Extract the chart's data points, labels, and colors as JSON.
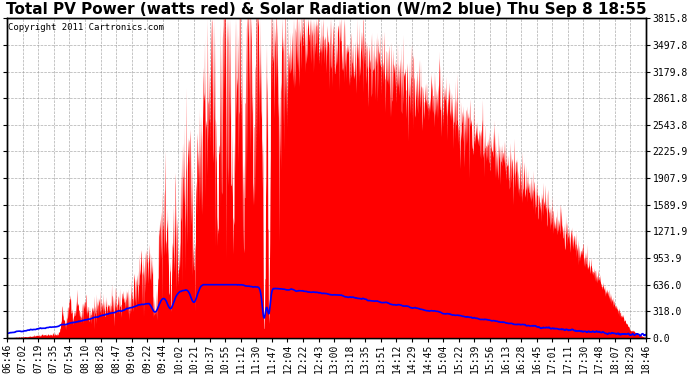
{
  "title": "Total PV Power (watts red) & Solar Radiation (W/m2 blue) Thu Sep 8 18:55",
  "copyright": "Copyright 2011 Cartronics.com",
  "y_ticks": [
    0.0,
    318.0,
    636.0,
    953.9,
    1271.9,
    1589.9,
    1907.9,
    2225.9,
    2543.8,
    2861.8,
    3179.8,
    3497.8,
    3815.8
  ],
  "y_max": 3815.8,
  "x_labels": [
    "06:46",
    "07:02",
    "07:19",
    "07:35",
    "07:54",
    "08:10",
    "08:28",
    "08:47",
    "09:04",
    "09:22",
    "09:44",
    "10:02",
    "10:21",
    "10:37",
    "10:55",
    "11:12",
    "11:30",
    "11:47",
    "12:04",
    "12:22",
    "12:43",
    "13:00",
    "13:18",
    "13:35",
    "13:51",
    "14:12",
    "14:29",
    "14:45",
    "15:04",
    "15:22",
    "15:39",
    "15:56",
    "16:13",
    "16:28",
    "16:45",
    "17:01",
    "17:11",
    "17:30",
    "17:48",
    "18:07",
    "18:29",
    "18:46"
  ],
  "pv_color": "#ff0000",
  "solar_color": "#0000ff",
  "background_color": "#ffffff",
  "grid_color": "#999999",
  "title_fontsize": 11,
  "tick_fontsize": 7,
  "copyright_fontsize": 6.5
}
